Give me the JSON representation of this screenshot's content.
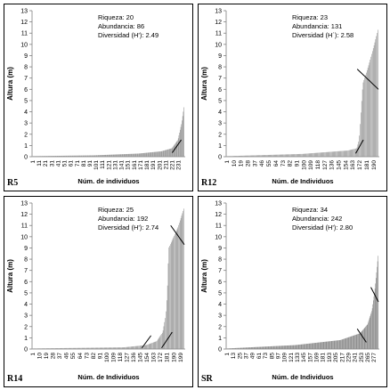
{
  "chart_data": [
    {
      "panel_label": "R5",
      "type": "bar",
      "ylabel": "Altura (m)",
      "xlabel": "Núm. de individuos",
      "ylim": [
        0,
        13
      ],
      "yticks": [
        "0",
        "1",
        "2",
        "3",
        "4",
        "5",
        "6",
        "7",
        "8",
        "9",
        "10",
        "11",
        "12",
        "13"
      ],
      "xticks": [
        "1",
        "11",
        "21",
        "31",
        "41",
        "51",
        "61",
        "71",
        "81",
        "91",
        "101",
        "111",
        "121",
        "131",
        "141",
        "151",
        "161",
        "171",
        "181",
        "191",
        "201",
        "211",
        "221",
        "231"
      ],
      "n_bars": 240,
      "stats": [
        "Riqueza: 20",
        "Abundancia: 86",
        "Diversidad (H'): 2.49"
      ],
      "profile": [
        [
          0,
          0.05
        ],
        [
          0.4,
          0.12
        ],
        [
          0.7,
          0.28
        ],
        [
          0.85,
          0.48
        ],
        [
          0.92,
          0.75
        ],
        [
          0.96,
          1.5
        ],
        [
          0.985,
          3.0
        ],
        [
          1,
          4.4
        ]
      ],
      "breaks": [
        [
          0.92,
          0.35,
          0.98,
          1.5
        ]
      ]
    },
    {
      "panel_label": "R12",
      "type": "bar",
      "ylabel": "Altura (m)",
      "xlabel": "Núm. de Individuos",
      "ylim": [
        0,
        13
      ],
      "yticks": [
        "0",
        "1",
        "2",
        "3",
        "4",
        "5",
        "6",
        "7",
        "8",
        "9",
        "10",
        "11",
        "12",
        "13"
      ],
      "xticks": [
        "1",
        "10",
        "19",
        "28",
        "37",
        "46",
        "55",
        "64",
        "73",
        "82",
        "91",
        "100",
        "109",
        "118",
        "127",
        "136",
        "145",
        "154",
        "163",
        "172",
        "181",
        "190"
      ],
      "n_bars": 196,
      "stats": [
        "Riqueza: 23",
        "Abundancia: 131",
        "Diversidad (H´): 2.58"
      ],
      "profile": [
        [
          0,
          0.05
        ],
        [
          0.5,
          0.25
        ],
        [
          0.8,
          0.55
        ],
        [
          0.86,
          0.75
        ],
        [
          0.875,
          1.5
        ],
        [
          0.885,
          3.5
        ],
        [
          0.9,
          6.5
        ],
        [
          0.94,
          8.2
        ],
        [
          0.98,
          10.2
        ],
        [
          1,
          11.3
        ]
      ],
      "breaks": [
        [
          0.85,
          0.3,
          0.9,
          1.5
        ],
        [
          0.86,
          7.8,
          1.0,
          6.0
        ]
      ]
    },
    {
      "panel_label": "R14",
      "type": "bar",
      "ylabel": "Altura (m)",
      "xlabel": "Núm. de Individuos",
      "ylim": [
        0,
        13
      ],
      "yticks": [
        "0",
        "1",
        "2",
        "3",
        "4",
        "5",
        "6",
        "7",
        "8",
        "9",
        "10",
        "11",
        "12",
        "13"
      ],
      "xticks": [
        "1",
        "10",
        "19",
        "28",
        "37",
        "46",
        "55",
        "64",
        "73",
        "82",
        "91",
        "100",
        "109",
        "118",
        "127",
        "136",
        "145",
        "154",
        "163",
        "172",
        "181",
        "190",
        "199"
      ],
      "n_bars": 204,
      "stats": [
        "Riqueza: 25",
        "Abundancia: 192",
        "Diversidad (H'): 2.74"
      ],
      "profile": [
        [
          0,
          0.05
        ],
        [
          0.6,
          0.15
        ],
        [
          0.75,
          0.35
        ],
        [
          0.82,
          0.7
        ],
        [
          0.86,
          1.5
        ],
        [
          0.88,
          3.0
        ],
        [
          0.89,
          5.0
        ],
        [
          0.9,
          9.0
        ],
        [
          0.96,
          10.8
        ],
        [
          1,
          12.5
        ]
      ],
      "breaks": [
        [
          0.72,
          0.1,
          0.78,
          1.2
        ],
        [
          0.85,
          0.1,
          0.92,
          1.5
        ],
        [
          0.91,
          11.0,
          1.0,
          9.3
        ]
      ]
    },
    {
      "panel_label": "SR",
      "type": "bar",
      "ylabel": "Altura (m)",
      "xlabel": "Núm. de Individuos",
      "ylim": [
        0,
        13
      ],
      "yticks": [
        "0",
        "1",
        "2",
        "3",
        "4",
        "5",
        "6",
        "7",
        "8",
        "9",
        "10",
        "11",
        "12",
        "13"
      ],
      "xticks": [
        "1",
        "13",
        "25",
        "37",
        "49",
        "61",
        "73",
        "85",
        "97",
        "109",
        "121",
        "133",
        "145",
        "157",
        "169",
        "181",
        "193",
        "205",
        "217",
        "229",
        "241",
        "253",
        "265",
        "277"
      ],
      "n_bars": 285,
      "stats": [
        "Riqueza: 34",
        "Abundancia: 242",
        "Diversidad (H'): 2.80"
      ],
      "profile": [
        [
          0,
          0.05
        ],
        [
          0.45,
          0.35
        ],
        [
          0.75,
          0.8
        ],
        [
          0.88,
          1.4
        ],
        [
          0.93,
          2.2
        ],
        [
          0.96,
          3.5
        ],
        [
          0.98,
          5.5
        ],
        [
          1,
          8.3
        ]
      ],
      "breaks": [
        [
          0.86,
          1.8,
          0.92,
          0.6
        ],
        [
          0.95,
          5.5,
          1.0,
          4.2
        ]
      ]
    }
  ]
}
